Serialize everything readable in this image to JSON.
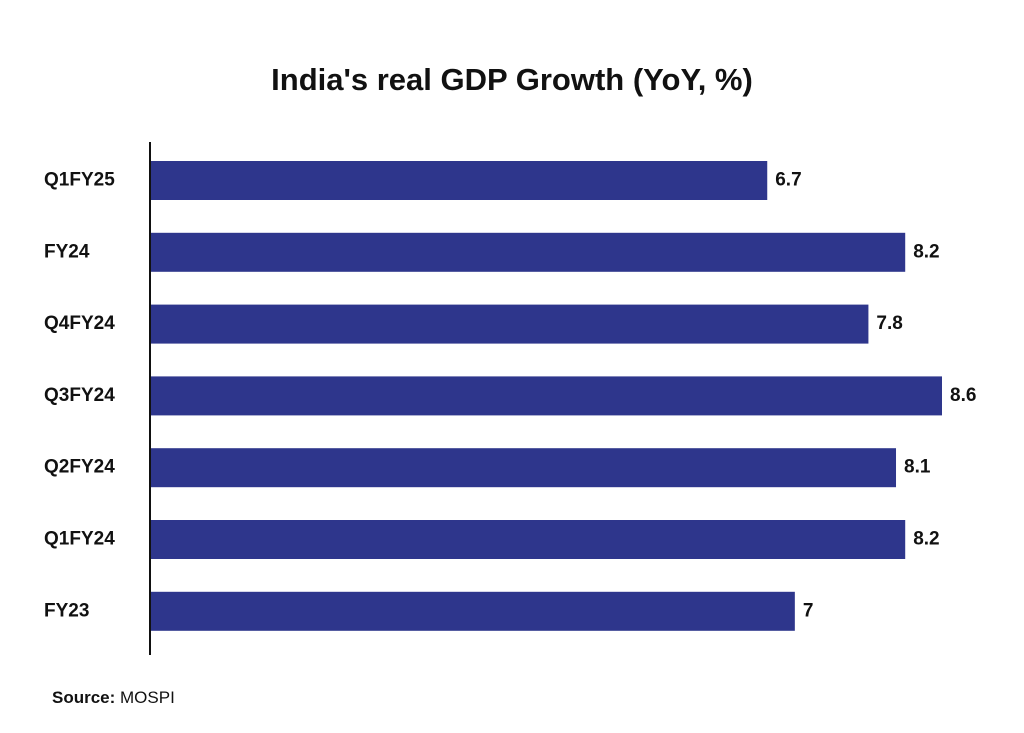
{
  "chart_data": {
    "type": "bar",
    "orientation": "horizontal",
    "title": "India's real GDP Growth (YoY, %)",
    "categories": [
      "Q1FY25",
      "FY24",
      "Q4FY24",
      "Q3FY24",
      "Q2FY24",
      "Q1FY24",
      "FY23"
    ],
    "values": [
      6.7,
      8.2,
      7.8,
      8.6,
      8.1,
      8.2,
      7
    ],
    "value_labels": [
      "6.7",
      "8.2",
      "7.8",
      "8.6",
      "8.1",
      "8.2",
      "7"
    ],
    "xlim": [
      0,
      8.6
    ],
    "grid": false,
    "legend": "none",
    "bar_color": "#2e368c"
  },
  "source": {
    "key": "Source:",
    "value": " MOSPI"
  }
}
